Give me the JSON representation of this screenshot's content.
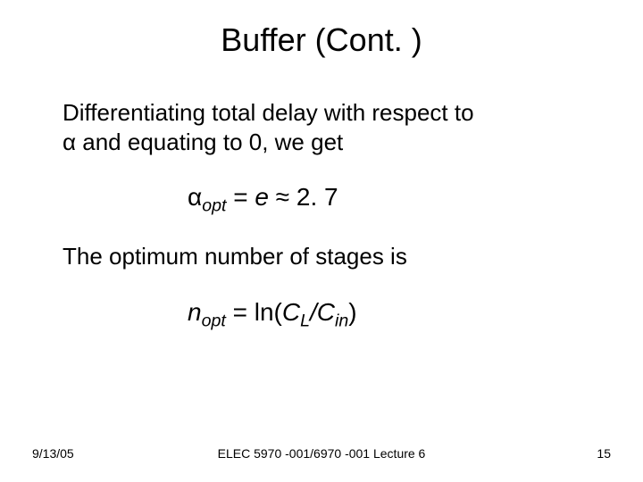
{
  "title": "Buffer (Cont. )",
  "para1_line1": "Differentiating total delay with respect to",
  "para1_line2": " α and equating to 0, we get",
  "eq1": {
    "alpha": "α",
    "sub_opt": "opt",
    "eq_part": "   =",
    "e": " e ",
    "approx": " ≈ 2. 7"
  },
  "para2": "The optimum number of stages is",
  "eq2": {
    "n": "n",
    "sub_opt": "opt",
    "eq_part": "   =  ln(",
    "C1": "C",
    "sub_L": "L",
    "slash": "/",
    "C2": "C",
    "sub_in": "in",
    "close": ")"
  },
  "footer": {
    "date": "9/13/05",
    "center": "ELEC 5970 -001/6970 -001 Lecture 6",
    "page": "15"
  },
  "style": {
    "background_color": "#ffffff",
    "text_color": "#000000",
    "title_fontsize": 36,
    "body_fontsize": 26,
    "eq_fontsize": 28,
    "footer_fontsize": 14,
    "font_family": "Arial"
  }
}
